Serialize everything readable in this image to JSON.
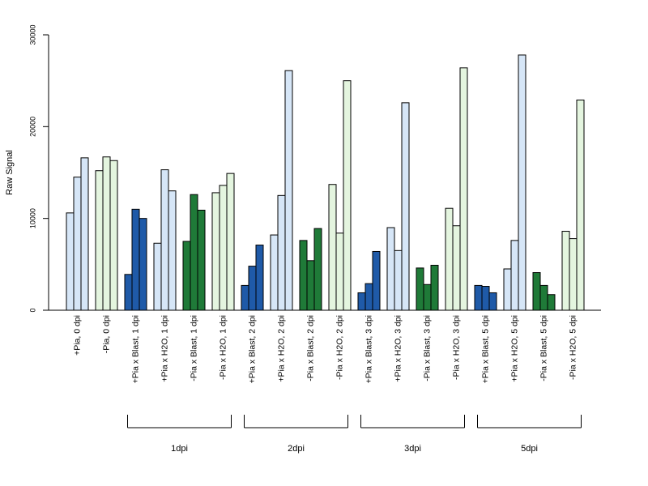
{
  "chart_data": {
    "type": "bar",
    "title": "",
    "xlabel": "",
    "ylabel": "Raw Signal",
    "ylim": [
      0,
      30000
    ],
    "y_ticks": [
      0,
      10000,
      20000,
      30000
    ],
    "y_tick_labels": [
      "0",
      "10000",
      "20000",
      "30000"
    ],
    "grid": false,
    "categories": [
      "+Pia, 0 dpi",
      "-Pia, 0 dpi",
      "+Pia x Blast, 1 dpi",
      "+Pia x H2O, 1 dpi",
      "-Pia x Blast, 1 dpi",
      "-Pia x H2O, 1 dpi",
      "+Pia x Blast, 2 dpi",
      "+Pia x H2O, 2 dpi",
      "-Pia x Blast, 2 dpi",
      "-Pia x H2O, 2 dpi",
      "+Pia x Blast, 3 dpi",
      "+Pia x H2O, 3 dpi",
      "-Pia x Blast, 3 dpi",
      "-Pia x H2O, 3 dpi",
      "+Pia x Blast, 5 dpi",
      "+Pia x H2O, 5 dpi",
      "-Pia x Blast, 5 dpi",
      "-Pia x H2O, 5 dpi"
    ],
    "replicates_per_category": 3,
    "values": [
      [
        10600,
        14500,
        16600
      ],
      [
        15200,
        16700,
        16300
      ],
      [
        3900,
        11000,
        10000
      ],
      [
        7300,
        15300,
        13000
      ],
      [
        7500,
        12600,
        10900
      ],
      [
        12800,
        13600,
        14900
      ],
      [
        2700,
        4800,
        7100
      ],
      [
        8200,
        12500,
        26100
      ],
      [
        7600,
        5400,
        8900
      ],
      [
        13700,
        8400,
        25000
      ],
      [
        1900,
        2900,
        6400
      ],
      [
        9000,
        6500,
        22600
      ],
      [
        4600,
        2800,
        4900
      ],
      [
        11100,
        9200,
        26400
      ],
      [
        2700,
        2600,
        1900
      ],
      [
        4500,
        7600,
        27800
      ],
      [
        4100,
        2700,
        1700
      ],
      [
        8600,
        7800,
        22900
      ]
    ],
    "category_colors": [
      "#d6e6f7",
      "#e4f5df",
      "#1f5aa8",
      "#d6e6f7",
      "#1f7a38",
      "#e4f5df",
      "#1f5aa8",
      "#d6e6f7",
      "#1f7a38",
      "#e4f5df",
      "#1f5aa8",
      "#d6e6f7",
      "#1f7a38",
      "#e4f5df",
      "#1f5aa8",
      "#d6e6f7",
      "#1f7a38",
      "#e4f5df"
    ],
    "groups": [
      {
        "label": "1dpi",
        "categories": [
          2,
          3,
          4,
          5
        ]
      },
      {
        "label": "2dpi",
        "categories": [
          6,
          7,
          8,
          9
        ]
      },
      {
        "label": "3dpi",
        "categories": [
          10,
          11,
          12,
          13
        ]
      },
      {
        "label": "5dpi",
        "categories": [
          14,
          15,
          16,
          17
        ]
      }
    ]
  }
}
